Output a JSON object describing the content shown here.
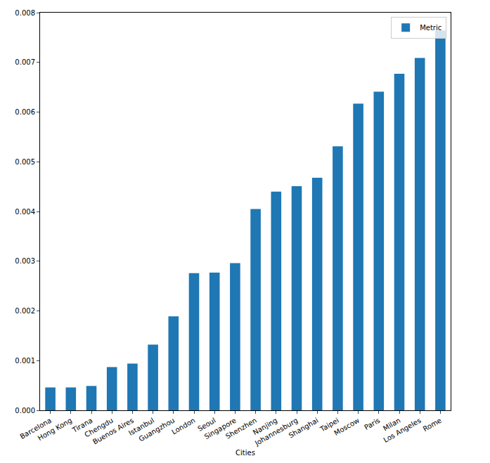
{
  "chart_data": {
    "type": "bar",
    "x_label": "Cities",
    "categories": [
      "Barcelona",
      "Hong Kong",
      "Tirana",
      "Chengdu",
      "Buenos Aires",
      "Istanbul",
      "Guangzhou",
      "London",
      "Seoul",
      "Singapore",
      "Shenzhen",
      "Nanjing",
      "Johannesburg",
      "Shanghai",
      "Taipei",
      "Moscow",
      "Paris",
      "Milan",
      "Los Angeles",
      "Rome"
    ],
    "series": [
      {
        "name": "Metric",
        "color": "#1f77b4",
        "values": [
          0.00046,
          0.00046,
          0.00049,
          0.00087,
          0.00094,
          0.00132,
          0.00189,
          0.00276,
          0.00277,
          0.00296,
          0.00405,
          0.0044,
          0.00451,
          0.00468,
          0.00531,
          0.00617,
          0.00641,
          0.00677,
          0.00709,
          0.00764
        ]
      }
    ],
    "ylim": [
      0,
      0.008
    ],
    "yticks": [
      {
        "value": 0,
        "label": "0.000"
      },
      {
        "value": 0.001,
        "label": "0.001"
      },
      {
        "value": 0.002,
        "label": "0.002"
      },
      {
        "value": 0.003,
        "label": "0.003"
      },
      {
        "value": 0.004,
        "label": "0.004"
      },
      {
        "value": 0.005,
        "label": "0.005"
      },
      {
        "value": 0.006,
        "label": "0.006"
      },
      {
        "value": 0.007,
        "label": "0.007"
      },
      {
        "value": 0.008,
        "label": "0.008"
      }
    ],
    "grid": false,
    "legend": "upper right"
  }
}
